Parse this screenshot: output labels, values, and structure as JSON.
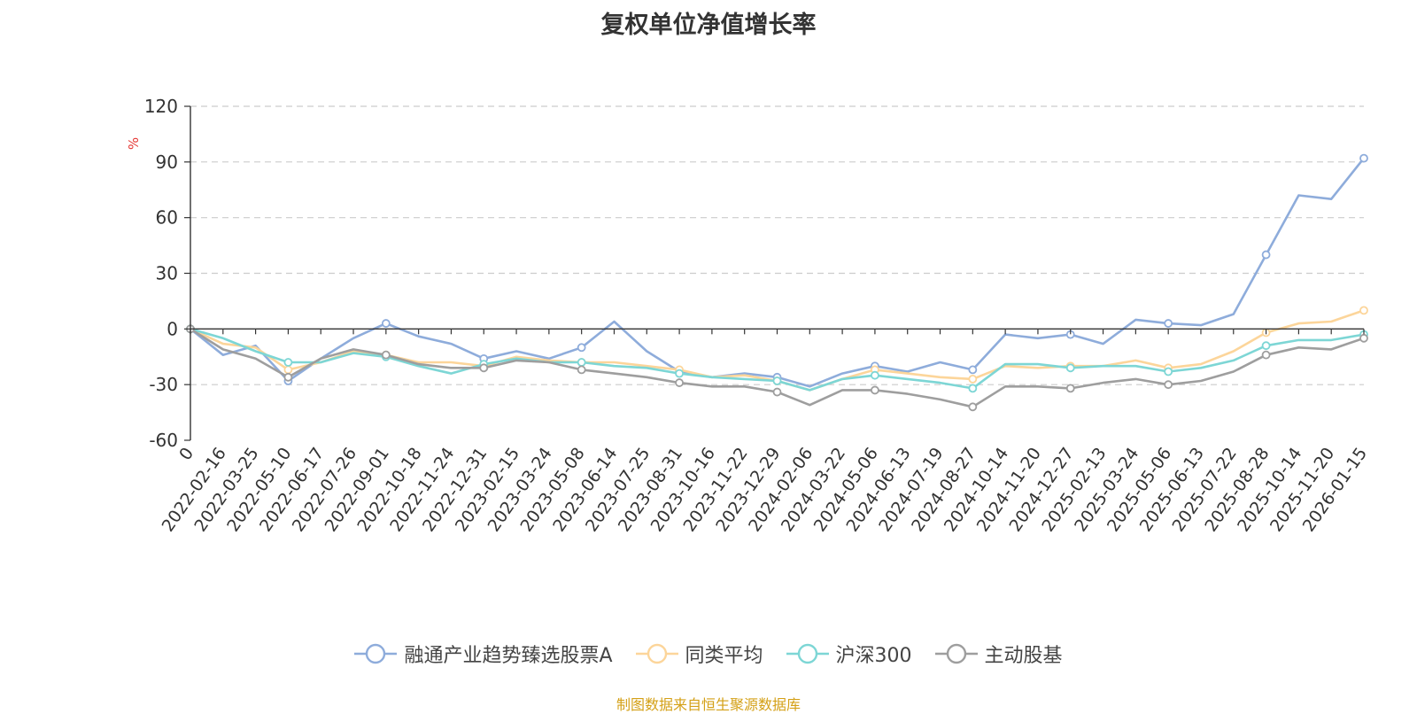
{
  "chart_data": {
    "type": "line",
    "title": "复权单位净值增长率",
    "ylabel": "%",
    "ylim": [
      -60,
      120
    ],
    "yticks": [
      120,
      90,
      60,
      30,
      0,
      -30,
      -60
    ],
    "grid": true,
    "legend_position": "bottom",
    "x_tick_labels": [
      "0",
      "2022-02-16",
      "2022-03-25",
      "2022-05-10",
      "2022-06-17",
      "2022-07-26",
      "2022-09-01",
      "2022-10-18",
      "2022-11-24",
      "2022-12-31",
      "2023-02-15",
      "2023-03-24",
      "2023-05-08",
      "2023-06-14",
      "2023-07-25",
      "2023-08-31",
      "2023-10-16",
      "2023-11-22",
      "2023-12-29",
      "2024-02-06",
      "2024-03-22",
      "2024-05-06",
      "2024-06-13",
      "2024-07-19",
      "2024-08-27",
      "2024-10-14",
      "2024-11-20",
      "2024-12-27",
      "2025-02-13",
      "2025-03-24",
      "2025-05-06",
      "2025-06-13",
      "2025-07-22",
      "2025-08-28",
      "2025-10-14",
      "2025-11-20",
      "2026-01-15"
    ],
    "series": [
      {
        "name": "融通产业趋势臻选股票A",
        "color": "#8eacdb",
        "values": [
          0,
          -14,
          -9,
          -28,
          -16,
          -5,
          3,
          -4,
          -8,
          -16,
          -12,
          -16,
          -10,
          4,
          -12,
          -23,
          -26,
          -24,
          -26,
          -31,
          -24,
          -20,
          -23,
          -18,
          -22,
          -3,
          -5,
          -3,
          -8,
          5,
          3,
          2,
          8,
          40,
          72,
          70,
          92
        ]
      },
      {
        "name": "同类平均",
        "color": "#fcd59a",
        "values": [
          0,
          -8,
          -10,
          -22,
          -18,
          -12,
          -14,
          -18,
          -18,
          -20,
          -15,
          -17,
          -18,
          -18,
          -20,
          -22,
          -26,
          -25,
          -28,
          -33,
          -27,
          -22,
          -24,
          -26,
          -27,
          -20,
          -21,
          -20,
          -20,
          -17,
          -21,
          -19,
          -12,
          -2,
          3,
          4,
          10
        ]
      },
      {
        "name": "沪深300",
        "color": "#7dd6d5",
        "values": [
          0,
          -5,
          -12,
          -18,
          -18,
          -13,
          -15,
          -20,
          -24,
          -19,
          -16,
          -18,
          -18,
          -20,
          -21,
          -24,
          -26,
          -27,
          -28,
          -33,
          -27,
          -25,
          -27,
          -29,
          -32,
          -19,
          -19,
          -21,
          -20,
          -20,
          -23,
          -21,
          -17,
          -9,
          -6,
          -6,
          -3
        ]
      },
      {
        "name": "主动股基",
        "color": "#9e9e9e",
        "values": [
          0,
          -11,
          -16,
          -26,
          -16,
          -11,
          -14,
          -19,
          -21,
          -21,
          -17,
          -18,
          -22,
          -24,
          -26,
          -29,
          -31,
          -31,
          -34,
          -41,
          -33,
          -33,
          -35,
          -38,
          -42,
          -31,
          -31,
          -32,
          -29,
          -27,
          -30,
          -28,
          -23,
          -14,
          -10,
          -11,
          -5
        ]
      }
    ]
  },
  "source_text": "制图数据来自恒生聚源数据库"
}
